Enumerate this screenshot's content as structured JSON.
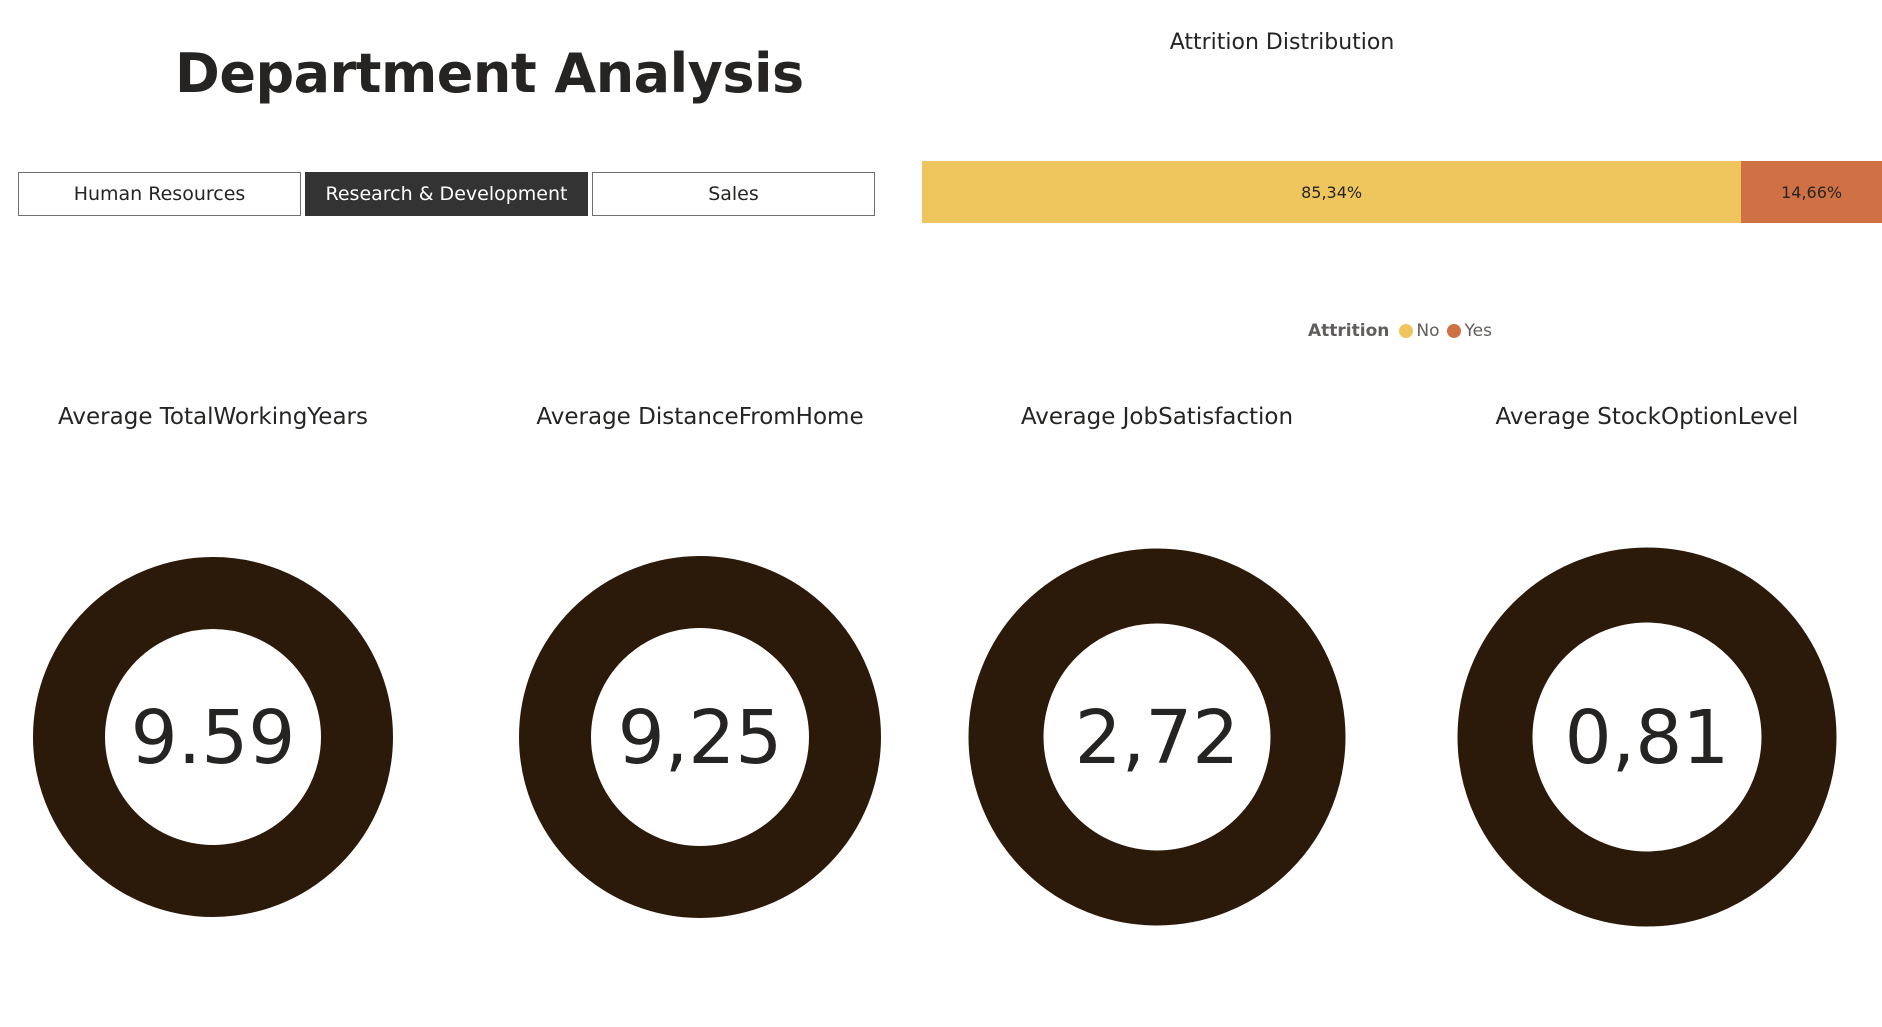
{
  "header": {
    "title": "Department Analysis"
  },
  "slicer": {
    "items": [
      {
        "label": "Human Resources",
        "selected": false
      },
      {
        "label": "Research & Development",
        "selected": true
      },
      {
        "label": "Sales",
        "selected": false
      }
    ]
  },
  "attrition": {
    "title": "Attrition Distribution",
    "legend_title": "Attrition",
    "segments": [
      {
        "name": "No",
        "label": "85,34%",
        "value": 85.34,
        "color": "#EFC65E"
      },
      {
        "name": "Yes",
        "label": "14,66%",
        "value": 14.66,
        "color": "#D07145"
      }
    ]
  },
  "kpis": [
    {
      "title": "Average TotalWorkingYears",
      "value": "9.59"
    },
    {
      "title": "Average DistanceFromHome",
      "value": "9,25"
    },
    {
      "title": "Average JobSatisfaction",
      "value": "2,72"
    },
    {
      "title": "Average StockOptionLevel",
      "value": "0,81"
    }
  ],
  "colors": {
    "donut": "#2B1A09",
    "slicer_selected_bg": "#333333",
    "bar_no": "#EFC65E",
    "bar_yes": "#D07145"
  }
}
